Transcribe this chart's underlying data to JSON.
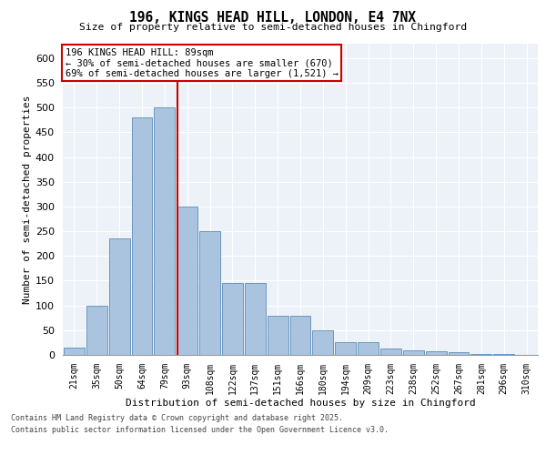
{
  "title1": "196, KINGS HEAD HILL, LONDON, E4 7NX",
  "title2": "Size of property relative to semi-detached houses in Chingford",
  "xlabel": "Distribution of semi-detached houses by size in Chingford",
  "ylabel": "Number of semi-detached properties",
  "categories": [
    "21sqm",
    "35sqm",
    "50sqm",
    "64sqm",
    "79sqm",
    "93sqm",
    "108sqm",
    "122sqm",
    "137sqm",
    "151sqm",
    "166sqm",
    "180sqm",
    "194sqm",
    "209sqm",
    "223sqm",
    "238sqm",
    "252sqm",
    "267sqm",
    "281sqm",
    "296sqm",
    "310sqm"
  ],
  "values": [
    15,
    100,
    235,
    480,
    500,
    300,
    250,
    145,
    145,
    80,
    80,
    50,
    25,
    25,
    12,
    10,
    8,
    5,
    2,
    1,
    0
  ],
  "bar_color": "#aac4df",
  "bar_edge_color": "#5b8db8",
  "vline_x": 4.55,
  "vline_color": "#cc0000",
  "annotation_line1": "196 KINGS HEAD HILL: 89sqm",
  "annotation_line2": "← 30% of semi-detached houses are smaller (670)",
  "annotation_line3": "69% of semi-detached houses are larger (1,521) →",
  "annotation_box_color": "#cc0000",
  "ylim": [
    0,
    630
  ],
  "yticks": [
    0,
    50,
    100,
    150,
    200,
    250,
    300,
    350,
    400,
    450,
    500,
    550,
    600
  ],
  "footer1": "Contains HM Land Registry data © Crown copyright and database right 2025.",
  "footer2": "Contains public sector information licensed under the Open Government Licence v3.0.",
  "background_color": "#edf2f9",
  "grid_color": "#ffffff",
  "fig_width": 6.0,
  "fig_height": 5.0,
  "fig_dpi": 100
}
